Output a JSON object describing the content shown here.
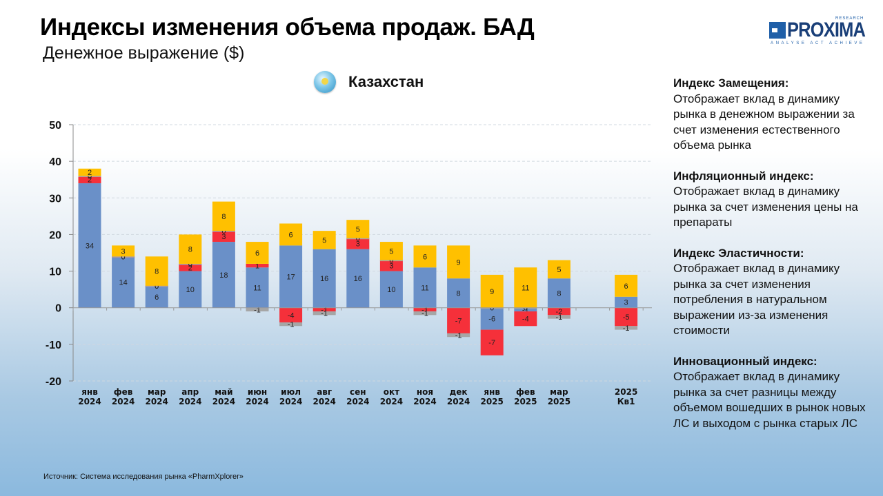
{
  "header": {
    "title": "Индексы изменения объема продаж. БАД",
    "subtitle": "Денежное выражение ($)"
  },
  "logo": {
    "name": "PROXIMA",
    "research": "RESEARCH",
    "tagline": "ANALYSE  ACT  ACHIEVE"
  },
  "country": {
    "icon": "kazakhstan-flag-icon",
    "name": "Казахстан"
  },
  "notes": [
    {
      "title": "Индекс Замещения:",
      "text": "Отображает вклад в динамику рынка в денежном выражении за счет изменения естественного объема рынка"
    },
    {
      "title": "Инфляционный индекс:",
      "text": "Отображает вклад в динамику рынка за счет изменения цены на препараты"
    },
    {
      "title": "Индекс Эластичности:",
      "text": "Отображает вклад в динамику рынка за счет изменения потребления в натуральном выражении из-за изменения стоимости"
    },
    {
      "title": "Инновационный индекс:",
      "text": "Отображает вклад в динамику рынка за счет разницы между объемом вошедших в рынок новых ЛС и выходом с рынка старых ЛС"
    }
  ],
  "source": "Источник: Система исследования рынка «PharmXplorer»",
  "chart_data": {
    "type": "bar",
    "stacked": true,
    "title": "Казахстан",
    "xlabel": "",
    "ylabel": "",
    "ylim": [
      -20,
      50
    ],
    "yticks": [
      50,
      40,
      30,
      20,
      10,
      0,
      -10,
      -20
    ],
    "grid": true,
    "categories": [
      [
        "янв",
        "2024"
      ],
      [
        "фев",
        "2024"
      ],
      [
        "мар",
        "2024"
      ],
      [
        "апр",
        "2024"
      ],
      [
        "май",
        "2024"
      ],
      [
        "июн",
        "2024"
      ],
      [
        "июл",
        "2024"
      ],
      [
        "авг",
        "2024"
      ],
      [
        "сен",
        "2024"
      ],
      [
        "окт",
        "2024"
      ],
      [
        "ноя",
        "2024"
      ],
      [
        "дек",
        "2024"
      ],
      [
        "янв",
        "2025"
      ],
      [
        "фев",
        "2025"
      ],
      [
        "мар",
        "2025"
      ],
      [
        "2025",
        "Кв1"
      ]
    ],
    "gap_before_last": true,
    "series": [
      {
        "name": "Индекс Замещения",
        "color": "#6a90c8",
        "values": [
          34,
          14,
          6,
          10,
          18,
          11,
          17,
          16,
          16,
          10,
          11,
          8,
          -6,
          -1,
          8,
          3
        ]
      },
      {
        "name": "Инфляционный индекс",
        "color": "#f5303a",
        "values": [
          2,
          0,
          0,
          2,
          3,
          1,
          -4,
          -1,
          3,
          3,
          -1,
          -7,
          -7,
          -4,
          -2,
          -5
        ]
      },
      {
        "name": "Индекс Эластичности",
        "color": "#a6a6a6",
        "values": [
          0,
          0,
          0,
          0,
          0,
          -1,
          -1,
          -1,
          0,
          0,
          -1,
          -1,
          0,
          0,
          -1,
          -1
        ]
      },
      {
        "name": "Инновационный индекс",
        "color": "#ffc000",
        "values": [
          2,
          3,
          8,
          8,
          8,
          6,
          6,
          5,
          5,
          5,
          6,
          9,
          9,
          11,
          5,
          6
        ]
      }
    ]
  }
}
